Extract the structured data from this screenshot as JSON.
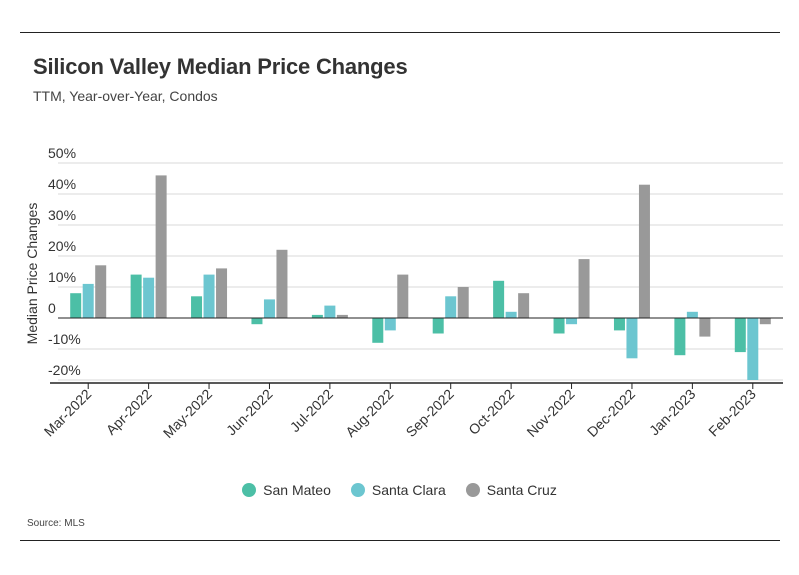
{
  "header": {
    "title": "Silicon Valley Median Price Changes",
    "subtitle": "TTM, Year-over-Year, Condos"
  },
  "source": "Source: MLS",
  "colors": {
    "San Mateo": "#4cbfa6",
    "Santa Clara": "#6cc6d0",
    "Santa Cruz": "#999999"
  },
  "chart_data": {
    "type": "bar",
    "categories": [
      "Mar-2022",
      "Apr-2022",
      "May-2022",
      "Jun-2022",
      "Jul-2022",
      "Aug-2022",
      "Sep-2022",
      "Oct-2022",
      "Nov-2022",
      "Dec-2022",
      "Jan-2023",
      "Feb-2023"
    ],
    "series": [
      {
        "name": "San Mateo",
        "values": [
          8,
          14,
          7,
          -2,
          1,
          -8,
          -5,
          12,
          -5,
          -4,
          -12,
          -11
        ]
      },
      {
        "name": "Santa Clara",
        "values": [
          11,
          13,
          14,
          6,
          4,
          -4,
          7,
          2,
          -2,
          -13,
          2,
          -20
        ]
      },
      {
        "name": "Santa Cruz",
        "values": [
          17,
          46,
          16,
          22,
          1,
          14,
          10,
          8,
          19,
          43,
          -6,
          -2
        ]
      }
    ],
    "ylabel": "Median Price Changes",
    "xlabel": "",
    "ylim": [
      -20,
      50
    ],
    "yticks": [
      50,
      40,
      30,
      20,
      10,
      0,
      -10,
      -20
    ],
    "ytick_labels": [
      "50%",
      "40%",
      "30%",
      "20%",
      "10%",
      "0",
      "-10%",
      "-20%"
    ],
    "grid": true,
    "legend": "bottom"
  }
}
